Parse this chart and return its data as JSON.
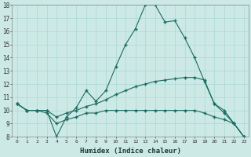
{
  "xlabel": "Humidex (Indice chaleur)",
  "ylabel": "",
  "background_color": "#cce9e5",
  "line_color": "#1a6b60",
  "grid_color": "#aad9d4",
  "x_values": [
    0,
    1,
    2,
    3,
    4,
    5,
    6,
    7,
    8,
    9,
    10,
    11,
    12,
    13,
    14,
    15,
    16,
    17,
    18,
    19,
    20,
    21,
    22,
    23
  ],
  "series1": [
    10.5,
    10.0,
    10.0,
    10.0,
    8.0,
    9.5,
    10.2,
    11.5,
    10.7,
    11.5,
    13.3,
    15.0,
    16.2,
    18.0,
    18.0,
    16.7,
    16.8,
    15.5,
    14.0,
    12.2,
    10.5,
    10.0,
    9.0,
    8.0
  ],
  "series2": [
    10.5,
    10.0,
    10.0,
    10.0,
    9.5,
    9.8,
    10.0,
    10.3,
    10.5,
    10.8,
    11.2,
    11.5,
    11.8,
    12.0,
    12.2,
    12.3,
    12.4,
    12.5,
    12.5,
    12.3,
    10.5,
    9.8,
    9.0,
    8.0
  ],
  "series3": [
    10.5,
    10.0,
    10.0,
    9.8,
    9.0,
    9.3,
    9.5,
    9.8,
    9.8,
    10.0,
    10.0,
    10.0,
    10.0,
    10.0,
    10.0,
    10.0,
    10.0,
    10.0,
    10.0,
    9.8,
    9.5,
    9.3,
    9.0,
    8.0
  ],
  "ylim": [
    8,
    18
  ],
  "xlim": [
    -0.5,
    23.5
  ],
  "yticks": [
    8,
    9,
    10,
    11,
    12,
    13,
    14,
    15,
    16,
    17,
    18
  ],
  "xticks": [
    0,
    1,
    2,
    3,
    4,
    5,
    6,
    7,
    8,
    9,
    10,
    11,
    12,
    13,
    14,
    15,
    16,
    17,
    18,
    19,
    20,
    21,
    22,
    23
  ]
}
